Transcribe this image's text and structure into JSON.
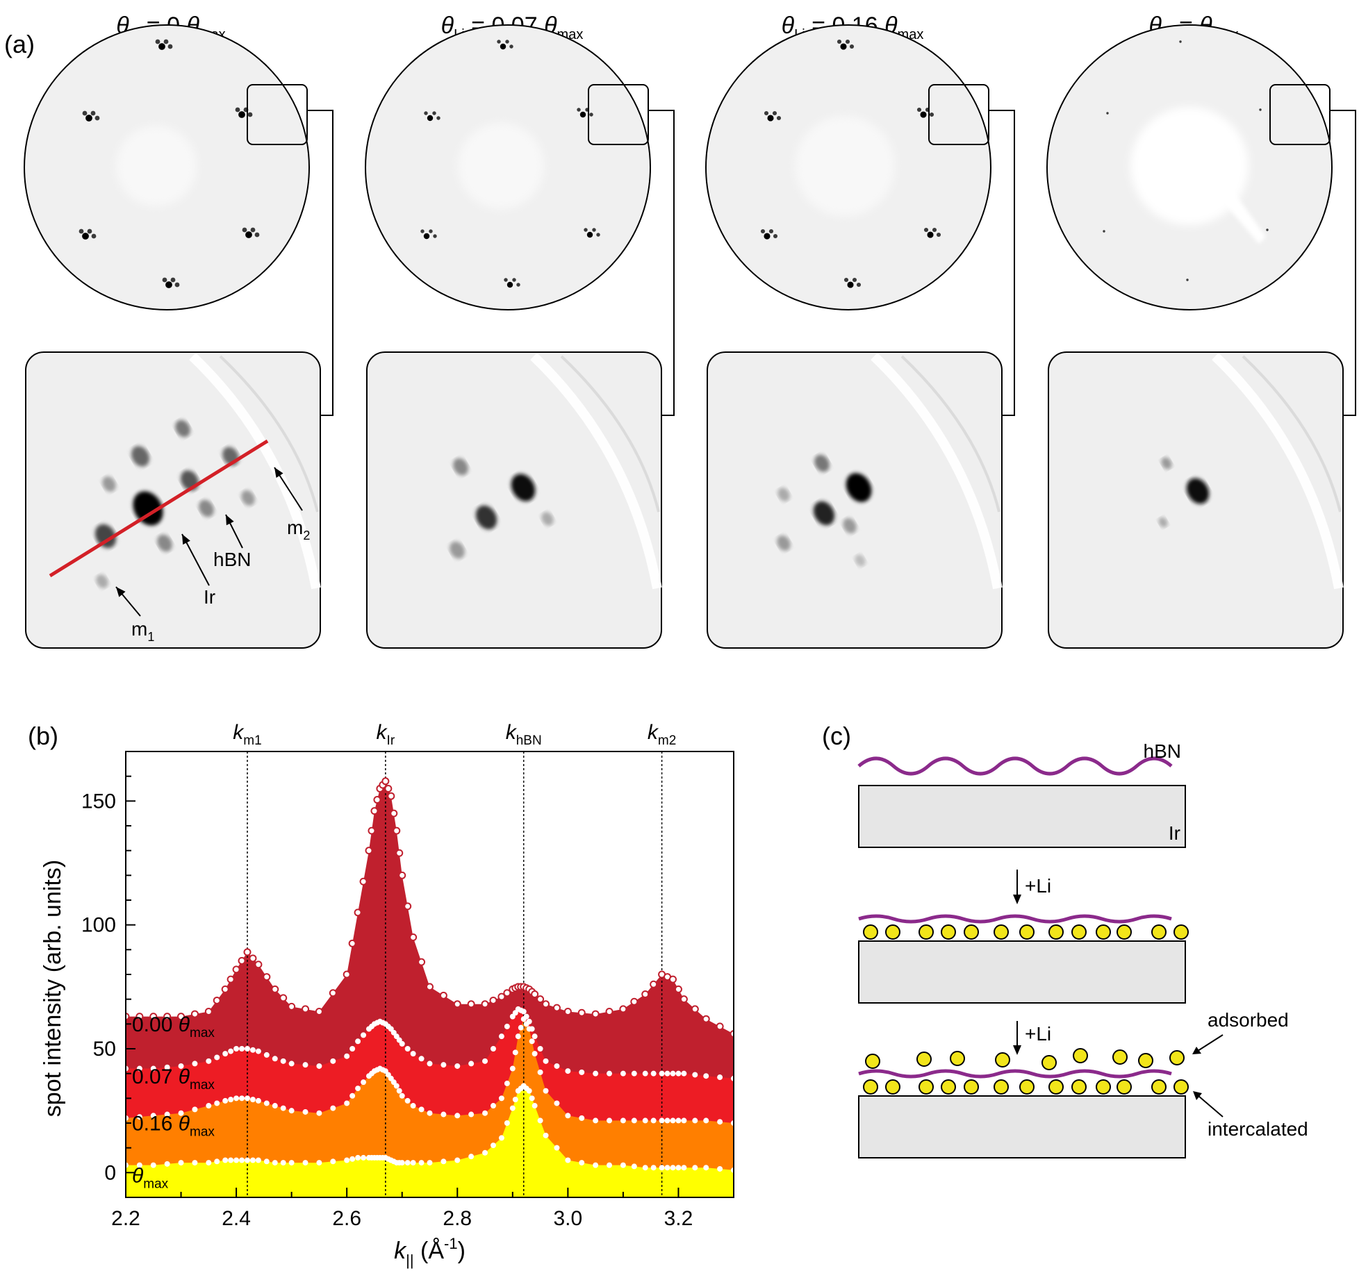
{
  "panel_a": {
    "label": "(a)",
    "columns": [
      {
        "theta_sym": "θ",
        "sub": "Li",
        "relation": " = 0 ",
        "max_sym": "θ",
        "max_sub": "max"
      },
      {
        "theta_sym": "θ",
        "sub": "Li",
        "relation": " = 0.07 ",
        "max_sym": "θ",
        "max_sub": "max"
      },
      {
        "theta_sym": "θ",
        "sub": "Li",
        "relation": " = 0.16 ",
        "max_sym": "θ",
        "max_sub": "max"
      },
      {
        "theta_sym": "θ",
        "sub": "Li",
        "relation": " = ",
        "max_sym": "θ",
        "max_sub": "max"
      }
    ],
    "zoom_labels": {
      "m1": "m",
      "m1_sub": "1",
      "ir": "Ir",
      "hbn": "hBN",
      "m2": "m",
      "m2_sub": "2"
    },
    "line_color": "#d32027"
  },
  "panel_b": {
    "label": "(b)",
    "peak_labels": [
      {
        "k": "k",
        "sub": "m1",
        "x": 2.42
      },
      {
        "k": "k",
        "sub": "Ir",
        "x": 2.67
      },
      {
        "k": "k",
        "sub": "hBN",
        "x": 2.92
      },
      {
        "k": "k",
        "sub": "m2",
        "x": 3.17
      }
    ]
  },
  "chart_data": {
    "type": "area",
    "xlabel": "k",
    "xlabel_sub": "||",
    "xlabel_unit": " (Å",
    "xlabel_unit_sup": "-1",
    "xlabel_unit_close": ")",
    "ylabel": "spot intensity (arb. units)",
    "xlim": [
      2.2,
      3.3
    ],
    "ylim": [
      -10,
      170
    ],
    "xticks": [
      "2.2",
      "2.4",
      "2.6",
      "2.8",
      "3.0",
      "3.2"
    ],
    "xtick_values": [
      2.2,
      2.4,
      2.6,
      2.8,
      3.0,
      3.2
    ],
    "yticks": [
      "0",
      "50",
      "100",
      "150"
    ],
    "ytick_values": [
      0,
      50,
      100,
      150
    ],
    "x": [
      2.2,
      2.25,
      2.3,
      2.35,
      2.38,
      2.4,
      2.42,
      2.44,
      2.47,
      2.5,
      2.55,
      2.6,
      2.62,
      2.64,
      2.65,
      2.66,
      2.67,
      2.68,
      2.69,
      2.7,
      2.72,
      2.75,
      2.8,
      2.85,
      2.88,
      2.9,
      2.91,
      2.92,
      2.93,
      2.94,
      2.96,
      3.0,
      3.05,
      3.1,
      3.14,
      3.17,
      3.19,
      3.21,
      3.25,
      3.3
    ],
    "series": [
      {
        "label": "0.00 ",
        "label_sym": "θ",
        "label_sub": "max",
        "fill": "#c0202e",
        "marker_edge": "#c0202e",
        "marker_fill": "#ffffff",
        "values": [
          63,
          63,
          63,
          65,
          74,
          82,
          89,
          84,
          74,
          67,
          65,
          80,
          105,
          130,
          146,
          155,
          158,
          152,
          138,
          120,
          95,
          75,
          68,
          68,
          71,
          74,
          75,
          75,
          74,
          72,
          68,
          65,
          64,
          66,
          72,
          80,
          78,
          70,
          62,
          56
        ]
      },
      {
        "label": "0.07 ",
        "label_sym": "θ",
        "label_sub": "max",
        "fill": "#ed1c24",
        "marker_edge": "#ffffff",
        "marker_fill": "#ffffff",
        "values": [
          42,
          42,
          43,
          45,
          48,
          50,
          50,
          49,
          46,
          44,
          43,
          47,
          53,
          58,
          60,
          61,
          60,
          58,
          55,
          52,
          48,
          44,
          43,
          45,
          55,
          63,
          66,
          65,
          61,
          55,
          45,
          41,
          40,
          40,
          40,
          40,
          40,
          40,
          39,
          38
        ]
      },
      {
        "label": "0.16 ",
        "label_sym": "θ",
        "label_sub": "max",
        "fill": "#ff7f00",
        "marker_edge": "#ffffff",
        "marker_fill": "#ffffff",
        "values": [
          22,
          23,
          24,
          27,
          29,
          30,
          30,
          29,
          27,
          25,
          24,
          28,
          34,
          39,
          41,
          42,
          41,
          38,
          35,
          31,
          27,
          24,
          23,
          24,
          30,
          42,
          55,
          62,
          58,
          48,
          33,
          23,
          21,
          21,
          21,
          21,
          21,
          21,
          21,
          20
        ]
      },
      {
        "label": "",
        "label_sym": "θ",
        "label_sub": "max",
        "fill": "#ffff00",
        "marker_edge": "#ffffff",
        "marker_fill": "#ffffff",
        "values": [
          3,
          3,
          4,
          4,
          5,
          5,
          5,
          5,
          4,
          4,
          4,
          5,
          6,
          6,
          6,
          6,
          6,
          5,
          4,
          4,
          4,
          4,
          5,
          8,
          14,
          26,
          33,
          35,
          33,
          27,
          15,
          5,
          3,
          3,
          2,
          2,
          2,
          2,
          2,
          1
        ]
      }
    ]
  },
  "panel_c": {
    "label": "(c)",
    "hbn": "hBN",
    "ir": "Ir",
    "plus_li_1": "+Li",
    "plus_li_2": "+Li",
    "adsorbed": "adsorbed",
    "intercalated": "intercalated",
    "colors": {
      "membrane": "#8b2a8b",
      "substrate": "#e6e6e6",
      "atom": "#f2e51a"
    }
  }
}
